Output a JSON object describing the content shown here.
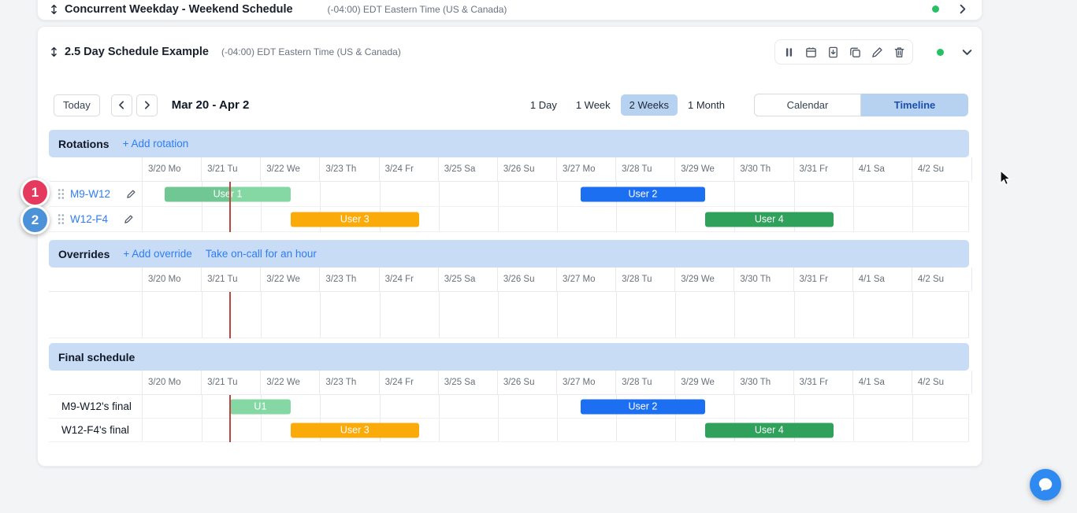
{
  "colors": {
    "section_header_bg": "#c9dcf6",
    "selected_btn_bg": "#b6d2f0",
    "selected_mode_text": "#1c4fae",
    "link": "#2d7df7",
    "now_line": "#bf4540",
    "status_dot": "#25c162"
  },
  "collapsed_schedule": {
    "title": "Concurrent Weekday - Weekend Schedule",
    "timezone": "(-04:00) EDT Eastern Time (US & Canada)"
  },
  "schedule_card": {
    "title": "2.5 Day Schedule Example",
    "timezone": "(-04:00) EDT Eastern Time (US & Canada)",
    "toolbar": {
      "today_label": "Today",
      "date_range": "Mar 20 - Apr 2",
      "view_options": [
        "1 Day",
        "1 Week",
        "2 Weeks",
        "1 Month"
      ],
      "selected_view": "2 Weeks",
      "mode_options": [
        "Calendar",
        "Timeline"
      ],
      "selected_mode": "Timeline"
    }
  },
  "timeline": {
    "dates": [
      "3/20 Mo",
      "3/21 Tu",
      "3/22 We",
      "3/23 Th",
      "3/24 Fr",
      "3/25 Sa",
      "3/26 Su",
      "3/27 Mo",
      "3/28 Tu",
      "3/29 We",
      "3/30 Th",
      "3/31 Fr",
      "4/1 Sa",
      "4/2 Su"
    ],
    "now_day": 1.477,
    "sections": [
      {
        "title": "Rotations",
        "row_type": "rotation",
        "actions": [
          {
            "label": "+ Add rotation",
            "name": "add-rotation-link"
          }
        ],
        "rows": [
          {
            "label": "M9-W12",
            "bars": [
              {
                "label": "User 1",
                "start": 0.375,
                "end": 2.5,
                "color": "#85d8a3",
                "past_color": "#70c793",
                "past_until": 1.477
              },
              {
                "label": "User 2",
                "start": 7.4,
                "end": 9.5,
                "color": "#1d6ff2"
              }
            ]
          },
          {
            "label": "W12-F4",
            "bars": [
              {
                "label": "User 3",
                "start": 2.5,
                "end": 4.667,
                "color": "#fbab09"
              },
              {
                "label": "User 4",
                "start": 9.5,
                "end": 11.667,
                "color": "#2fa15b"
              }
            ]
          }
        ]
      },
      {
        "title": "Overrides",
        "row_type": "empty",
        "actions": [
          {
            "label": "+ Add override",
            "name": "add-override-link"
          },
          {
            "label": "Take on-call for an hour",
            "name": "take-on-call-link"
          }
        ],
        "rows": [
          {
            "label": "",
            "bars": []
          }
        ]
      },
      {
        "title": "Final schedule",
        "row_type": "final",
        "actions": [],
        "rows": [
          {
            "label": "M9-W12's final",
            "bars": [
              {
                "label": "U1",
                "start": 1.477,
                "end": 2.5,
                "color": "#85d8a3"
              },
              {
                "label": "User 2",
                "start": 7.4,
                "end": 9.5,
                "color": "#1d6ff2"
              }
            ]
          },
          {
            "label": "W12-F4's final",
            "bars": [
              {
                "label": "User 3",
                "start": 2.5,
                "end": 4.667,
                "color": "#fbab09"
              },
              {
                "label": "User 4",
                "start": 9.5,
                "end": 11.667,
                "color": "#2fa15b"
              }
            ]
          }
        ]
      }
    ]
  },
  "annotations": [
    {
      "label": "1",
      "color": "#e6395e"
    },
    {
      "label": "2",
      "color": "#4b92d9"
    }
  ],
  "chat_button": {
    "color": "#2e8af0"
  }
}
